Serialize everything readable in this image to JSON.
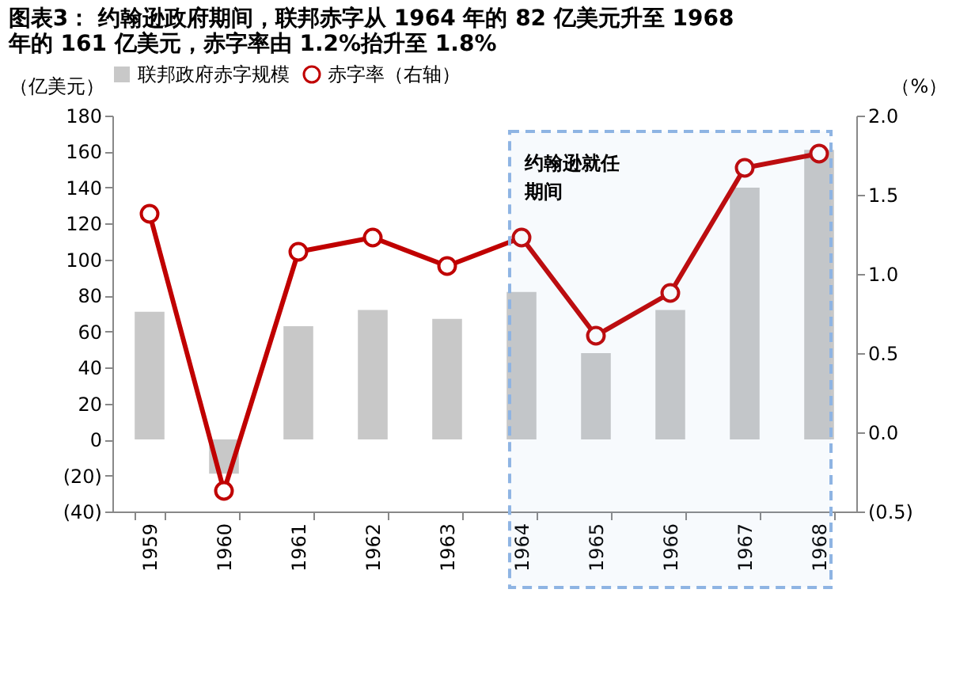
{
  "chart_data": {
    "type": "bar",
    "title": "图表3：  约翰逊政府期间，联邦赤字从 1964 年的 82 亿美元升至 1968 年的 161 亿美元，赤字率由 1.2%抬升至 1.8%",
    "ylabel": "（亿美元）",
    "y2label": "（%）",
    "categories": [
      "1959",
      "1960",
      "1961",
      "1962",
      "1963",
      "1964",
      "1965",
      "1966",
      "1967",
      "1968"
    ],
    "series": [
      {
        "name": "联邦政府赤字规模",
        "color": "#c8c8c8",
        "values": [
          71,
          -19,
          63,
          72,
          67,
          82,
          48,
          72,
          140,
          161
        ]
      },
      {
        "name": "赤字率（右轴）",
        "type": "line",
        "axis": "y2",
        "color": "#c00000",
        "marker": "circle",
        "values": [
          1.38,
          -0.37,
          1.14,
          1.23,
          1.05,
          1.23,
          0.61,
          0.88,
          1.67,
          1.76
        ]
      }
    ],
    "ylim": [
      -40,
      180
    ],
    "yticks": [
      {
        "value": -40,
        "label": "(40)"
      },
      {
        "value": -20,
        "label": "(20)"
      },
      0,
      20,
      40,
      60,
      80,
      100,
      120,
      140,
      160,
      180
    ],
    "y2lim": [
      -0.5,
      2.0
    ],
    "y2ticks": [
      {
        "value": -0.5,
        "label": "(0.5)"
      },
      {
        "value": 0,
        "label": "0.0"
      },
      {
        "value": 0.5,
        "label": "0.5"
      },
      {
        "value": 1,
        "label": "1.0"
      },
      {
        "value": 1.5,
        "label": "1.5"
      },
      {
        "value": 2,
        "label": "2.0"
      }
    ],
    "bands": [
      {
        "axis": "x",
        "from": "1964",
        "to": "1968",
        "label": "约翰逊就任期间",
        "color": "#8eb4e3"
      }
    ],
    "legend": "top",
    "grid": false
  }
}
